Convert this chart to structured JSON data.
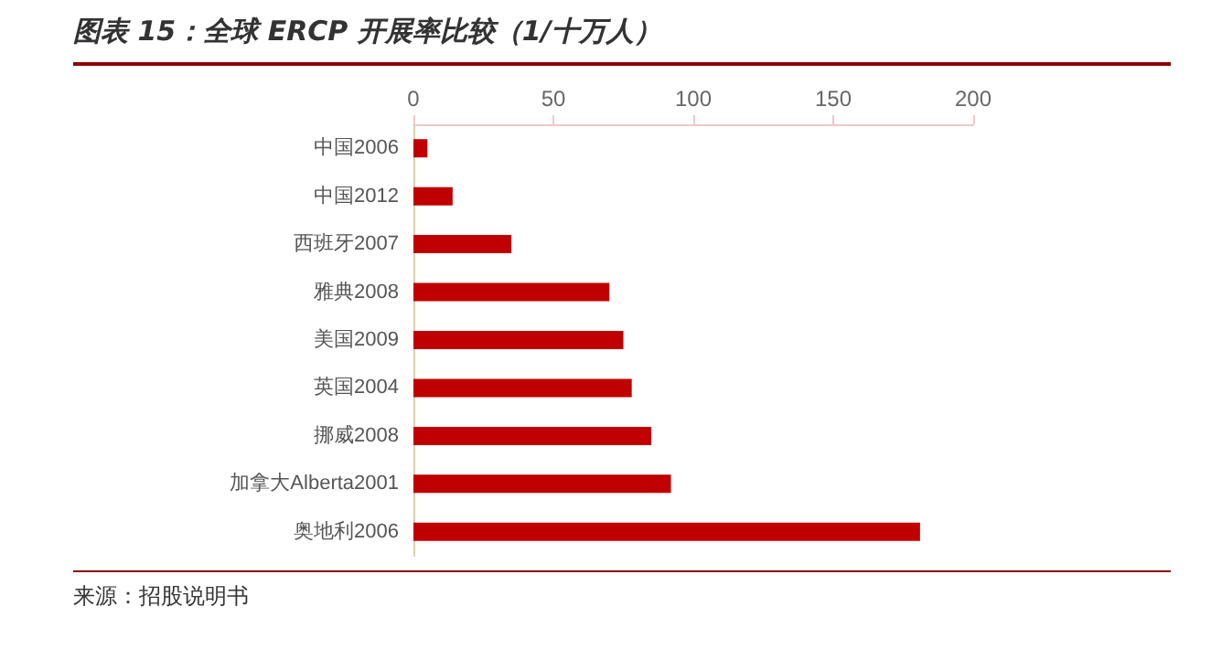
{
  "chart_data": {
    "type": "bar",
    "orientation": "horizontal",
    "title": "图表 15：全球 ERCP 开展率比较（1/十万人）",
    "categories": [
      "中国2006",
      "中国2012",
      "西班牙2007",
      "雅典2008",
      "美国2009",
      "英国2004",
      "挪威2008",
      "加拿大Alberta2001",
      "奥地利2006"
    ],
    "values": [
      5,
      14,
      35,
      70,
      75,
      78,
      85,
      92,
      181
    ],
    "color": "#c00000",
    "xlim": [
      0,
      200
    ],
    "xticks": [
      0,
      50,
      100,
      150,
      200
    ],
    "grid": false,
    "annotations": [
      "来源：招股说明书"
    ]
  }
}
